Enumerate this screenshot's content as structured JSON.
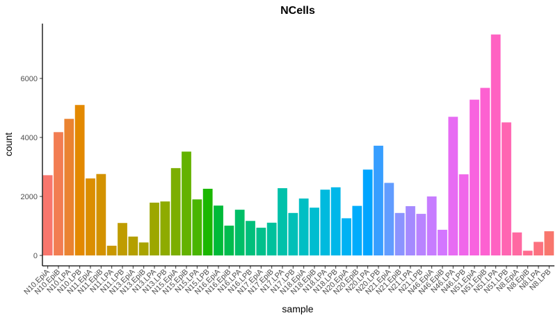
{
  "chart_data": {
    "type": "bar",
    "title": "NCells",
    "xlabel": "sample",
    "ylabel": "count",
    "ylim": [
      0,
      7800
    ],
    "yticks": [
      0,
      2000,
      4000,
      6000
    ],
    "ytick_labels": [
      "0",
      "2000",
      "4000",
      "6000"
    ],
    "grid": false,
    "legend": "none",
    "categories": [
      "N10.EpiA",
      "N10.EpiB",
      "N10.LPA",
      "N10.LPB",
      "N11.EpiA",
      "N11.EpiB",
      "N11.LPA",
      "N11.LPB",
      "N13.EpiA",
      "N13.EpiB",
      "N13.LPA",
      "N13.LPB",
      "N15.EpiA",
      "N15.EpiB",
      "N15.LPA",
      "N15.LPB",
      "N16.EpiA",
      "N16.EpiB",
      "N16.LPA",
      "N16.LPB",
      "N17.EpiA",
      "N17.EpiB",
      "N17.LPA",
      "N17.LPB",
      "N18.EpiA",
      "N18.EpiB",
      "N18.LPA",
      "N18.LPB",
      "N20.EpiA",
      "N20.EpiB",
      "N20.LPA",
      "N20.LPB",
      "N21.EpiA",
      "N21.EpiB",
      "N21.LPA",
      "N21.LPB",
      "N46.EpiA",
      "N46.EpiB",
      "N46.LPA",
      "N46.LPB",
      "N51.EpiA",
      "N51.EpiB",
      "N51.LPA",
      "N51.LPB",
      "N8.EpiA",
      "N8.EpiB",
      "N8.LPA",
      "N8.LPB"
    ],
    "values": [
      2720,
      4180,
      4630,
      5100,
      2610,
      2760,
      330,
      1100,
      640,
      440,
      1790,
      1830,
      2960,
      3520,
      1900,
      2260,
      1690,
      1010,
      1550,
      1170,
      940,
      1110,
      2280,
      1440,
      1930,
      1620,
      2230,
      2310,
      1260,
      1680,
      2910,
      3720,
      2460,
      1440,
      1670,
      1410,
      2000,
      870,
      4700,
      2750,
      5280,
      5680,
      7490,
      4510,
      780,
      160,
      460,
      820
    ],
    "colors": [
      "#F8766D",
      "#F27D52",
      "#EA8331",
      "#E38900",
      "#DB8E00",
      "#D39200",
      "#C99800",
      "#BF9C00",
      "#B49F00",
      "#A9A400",
      "#9CA700",
      "#8EAB00",
      "#7CAE00",
      "#64B200",
      "#49B500",
      "#1BB700",
      "#00BA38",
      "#00BC4E",
      "#00BE67",
      "#00BF7B",
      "#00C08B",
      "#00C19C",
      "#00C1AA",
      "#00C0B8",
      "#00BFC4",
      "#00BDD0",
      "#00BADE",
      "#00B7E9",
      "#00B2F3",
      "#00ACFC",
      "#00A5FF",
      "#379EFF",
      "#619CFF",
      "#8B93FF",
      "#A58AFF",
      "#B983FF",
      "#C77CFF",
      "#D376FF",
      "#E76BF3",
      "#F066EA",
      "#F863DF",
      "#FD61D1",
      "#FF62C2",
      "#FF65B2",
      "#FF69A2",
      "#FF6C90",
      "#FC717F",
      "#F8766D"
    ]
  }
}
